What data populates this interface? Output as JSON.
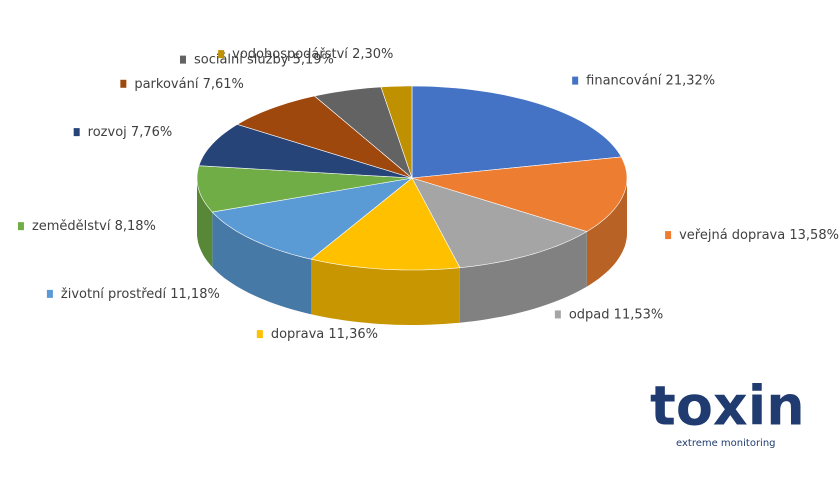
{
  "chart_data": {
    "type": "pie3d",
    "categories": [
      "financování",
      "veřejná doprava",
      "odpad",
      "doprava",
      "životní prostředí",
      "zemědělství",
      "rozvoj",
      "parkování",
      "sociální služby",
      "vodohospodářství"
    ],
    "values": [
      21.32,
      13.58,
      11.53,
      11.36,
      11.18,
      8.18,
      7.76,
      7.61,
      5.19,
      2.3
    ],
    "value_labels": [
      "21,32%",
      "13,58%",
      "11,53%",
      "11,36%",
      "11,18%",
      "8,18%",
      "7,76%",
      "7,61%",
      "5,19%",
      "2,30%"
    ],
    "colors": [
      "#4472c4",
      "#ed7d31",
      "#a5a5a5",
      "#ffc000",
      "#5b9bd5",
      "#70ad47",
      "#264478",
      "#9e480e",
      "#636363",
      "#bf9000"
    ]
  },
  "logo": {
    "title": "toxin",
    "subtitle": "extreme monitoring"
  }
}
